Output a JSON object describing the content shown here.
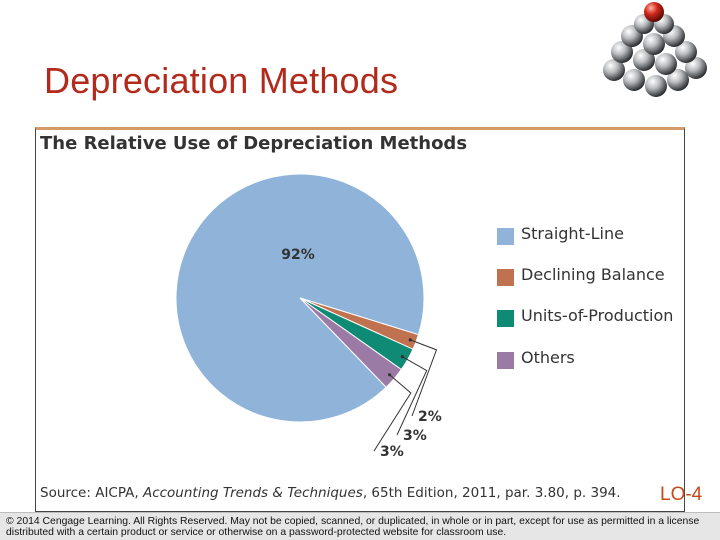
{
  "slide": {
    "title": "Depreciation Methods",
    "lo_badge": "LO-4",
    "footer": "© 2014 Cengage Learning. All Rights Reserved. May not be copied, scanned, or duplicated, in whole or in part, except for use as permitted in a license distributed with a certain product or service or otherwise on a password-protected website for classroom use."
  },
  "chart_data": {
    "type": "pie",
    "title": "The Relative Use of Depreciation Methods",
    "source_prefix": "Source: AICPA, ",
    "source_italic": "Accounting Trends & Techniques",
    "source_suffix": ", 65th Edition, 2011, par. 3.80, p. 394.",
    "legend_position": "right",
    "slices": [
      {
        "name": "Straight-Line",
        "value": 92,
        "label": "92%",
        "color": "#8fb3d9"
      },
      {
        "name": "Declining Balance",
        "value": 2,
        "label": "2%",
        "color": "#c0714f"
      },
      {
        "name": "Units-of-Production",
        "value": 3,
        "label": "3%",
        "color": "#0f8a74"
      },
      {
        "name": "Others",
        "value": 3,
        "label": "3%",
        "color": "#9c7aa6"
      }
    ]
  },
  "colors": {
    "title_red": "#b22a1c",
    "lo_orange": "#c4491a",
    "rule_tan": "#d59a6a"
  },
  "logo_icon": "sphere-pyramid-icon"
}
